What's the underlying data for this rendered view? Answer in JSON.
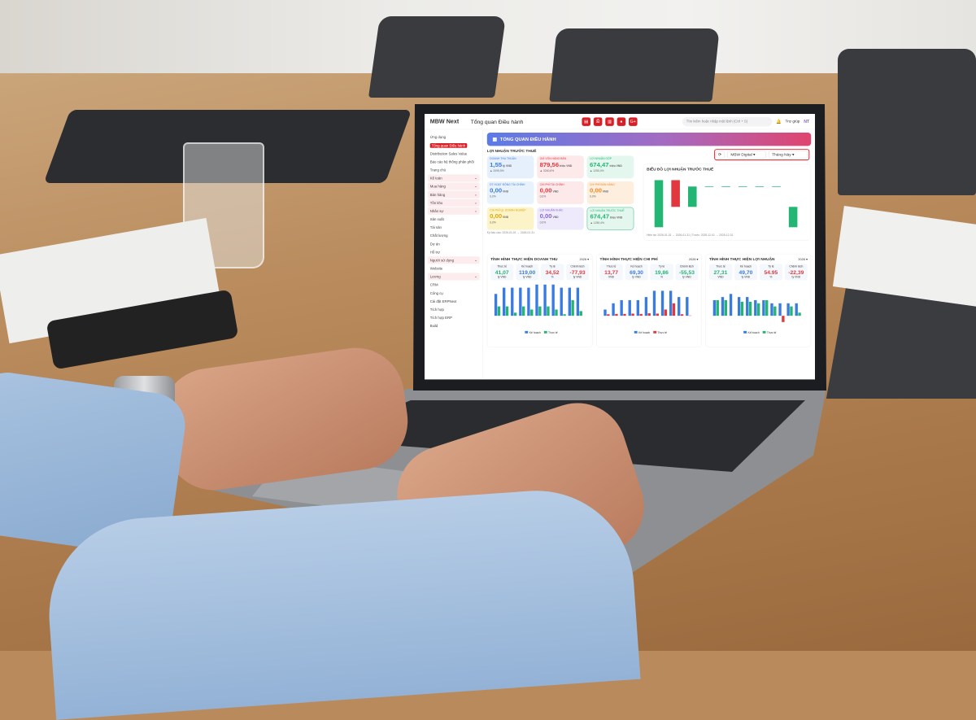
{
  "app": {
    "logo": "MBW Next",
    "title": "Tổng quan Điều hành",
    "search_placeholder": "Tìm kiếm hoặc nhập một lệnh (Ctrl + S)",
    "help": "Trợ giúp",
    "avatar": "NT",
    "toolbar_icons": [
      "report-icon",
      "print-icon",
      "chart-icon",
      "user-icon",
      "google-plus-icon"
    ]
  },
  "colors": {
    "brand": "#d81f26",
    "blue": "#3a7be0",
    "green": "#22b573",
    "red": "#e0383e"
  },
  "sidebar": {
    "items": [
      {
        "label": "Ứng dụng"
      },
      {
        "label": "Tổng quan Điều hành",
        "active": true
      },
      {
        "label": "Distribution Sales Value"
      },
      {
        "label": "Báo cáo hệ thống phân phối"
      },
      {
        "label": "Trang chủ"
      },
      {
        "label": "Kế toán",
        "group": true
      },
      {
        "label": "Mua hàng",
        "group": true
      },
      {
        "label": "Bán hàng",
        "group": true
      },
      {
        "label": "Tồn kho",
        "group": true
      },
      {
        "label": "Nhân sự",
        "group": true
      },
      {
        "label": "Sản xuất"
      },
      {
        "label": "Tài sản"
      },
      {
        "label": "Chất lượng"
      },
      {
        "label": "Dự án"
      },
      {
        "label": "Hỗ trợ"
      },
      {
        "label": "Người sử dụng",
        "group": true
      },
      {
        "label": "Website"
      },
      {
        "label": "Lương",
        "group": true
      },
      {
        "label": "CRM"
      },
      {
        "label": "Công cụ"
      },
      {
        "label": "Cài đặt ERPNext"
      },
      {
        "label": "Tích hợp"
      },
      {
        "label": "Tích hợp ERP"
      },
      {
        "label": "Build"
      }
    ]
  },
  "banner": {
    "title": "TỔNG QUAN ĐIỀU HÀNH",
    "company": "MBW Digital",
    "period": "Tháng Này"
  },
  "profit": {
    "title": "LỢI NHUẬN TRƯỚC THUẾ",
    "period": "Tháng này",
    "footnote": "Kỳ báo cáo: 2026-01-01 → 2026-01-31",
    "cards": [
      {
        "label": "DOANH THU THUẦN",
        "value": "1,55",
        "unit": "tỷ VND",
        "delta": "▲ 2095,5%",
        "color": "#3a7be0",
        "bg": "#e6f0fd"
      },
      {
        "label": "GIÁ VỐN HÀNG BÁN",
        "value": "879,56",
        "unit": "triệu VND",
        "delta": "▲ 3240,6%",
        "color": "#e0383e",
        "bg": "#fde8ea"
      },
      {
        "label": "LỢI NHUẬN GỘP",
        "value": "674,47",
        "unit": "triệu VND",
        "delta": "▲ 1250,4%",
        "color": "#22b573",
        "bg": "#e4f7ee"
      },
      {
        "label": "DT HOẠT ĐỘNG TÀI CHÍNH",
        "value": "0,00",
        "unit": "VND",
        "delta": "0,0%",
        "color": "#3a7be0",
        "bg": "#e8f2fc"
      },
      {
        "label": "CHI PHÍ TÀI CHÍNH",
        "value": "0,00",
        "unit": "VND",
        "delta": "0,0%",
        "color": "#e0383e",
        "bg": "#fde8ea"
      },
      {
        "label": "CHI PHÍ BÁN HÀNG",
        "value": "0,00",
        "unit": "VND",
        "delta": "0,0%",
        "color": "#f08a24",
        "bg": "#fdeedd"
      },
      {
        "label": "CHI PHÍ QL DOANH NGHIỆP",
        "value": "0,00",
        "unit": "VND",
        "delta": "0,0%",
        "color": "#e0a800",
        "bg": "#fdf3c8"
      },
      {
        "label": "LỢI NHUẬN KHÁC",
        "value": "0,00",
        "unit": "VND",
        "delta": "0,0%",
        "color": "#8a63d2",
        "bg": "#efeafb"
      },
      {
        "label": "LỢI NHUẬN TRƯỚC THUẾ",
        "value": "674,47",
        "unit": "triệu VND",
        "delta": "▲ 1250,4%",
        "color": "#22b573",
        "bg": "#e4f7ee"
      }
    ]
  },
  "waterfall": {
    "title": "BIỂU ĐỒ LỢI NHUẬN TRƯỚC THUẾ",
    "period": "Tháng này",
    "footnote": "Hiện tại: 2026-01-01 → 2026-01-31 | Trước: 2025-12-01 → 2025-12-31",
    "values": [
      1.55,
      -0.88,
      0.67,
      0,
      0,
      0,
      0,
      0,
      0.67
    ],
    "colors": [
      "#22b573",
      "#e0383e",
      "#22b573",
      "#22b573",
      "#22b573",
      "#22b573",
      "#22b573",
      "#22b573",
      "#22b573"
    ]
  },
  "panels": [
    {
      "title": "TÌNH HÌNH THỰC HIỆN DOANH THU",
      "year": "2026",
      "kpis": [
        {
          "label": "Thực tế",
          "value": "41,07",
          "unit": "tỷ VND",
          "color": "#22b573"
        },
        {
          "label": "Kế hoạch",
          "value": "119,00",
          "unit": "tỷ VND",
          "color": "#3a7be0"
        },
        {
          "label": "Tỷ lệ",
          "value": "34,52",
          "unit": "%",
          "color": "#e0383e"
        },
        {
          "label": "Chênh lệch",
          "value": "-77,93",
          "unit": "tỷ VND",
          "color": "#e0383e"
        }
      ],
      "legend": [
        "Kế hoạch",
        "Thực tế"
      ],
      "colors": [
        "#3a7be0",
        "#22b573"
      ],
      "plan": [
        7,
        9,
        9,
        9,
        9,
        10,
        10,
        10,
        9,
        9,
        9
      ],
      "actual": [
        3,
        3,
        1,
        3,
        2,
        3,
        3,
        2,
        0.5,
        5,
        1.5
      ]
    },
    {
      "title": "TÌNH HÌNH THỰC HIỆN CHI PHÍ",
      "year": "2026",
      "kpis": [
        {
          "label": "Thực tế",
          "value": "13,77",
          "unit": "VND",
          "color": "#e0383e"
        },
        {
          "label": "Kế hoạch",
          "value": "69,30",
          "unit": "tỷ VND",
          "color": "#3a7be0"
        },
        {
          "label": "Tỷ lệ",
          "value": "19,86",
          "unit": "%",
          "color": "#22b573"
        },
        {
          "label": "Chênh lệch",
          "value": "-55,53",
          "unit": "tỷ VND",
          "color": "#22b573"
        }
      ],
      "legend": [
        "Kế hoạch",
        "Thực tế"
      ],
      "colors": [
        "#3a7be0",
        "#e0383e"
      ],
      "plan": [
        2,
        4,
        5,
        5,
        5,
        6,
        8,
        8,
        8,
        6,
        6
      ],
      "actual": [
        0.5,
        0.6,
        0.6,
        0.7,
        0.6,
        0.8,
        0.7,
        2,
        4,
        0.5,
        0.1
      ]
    },
    {
      "title": "TÌNH HÌNH THỰC HIỆN LỢI NHUẬN",
      "year": "2026",
      "kpis": [
        {
          "label": "Thực tế",
          "value": "27,31",
          "unit": "VND",
          "color": "#22b573"
        },
        {
          "label": "Kế hoạch",
          "value": "49,70",
          "unit": "tỷ VND",
          "color": "#3a7be0"
        },
        {
          "label": "Tỷ lệ",
          "value": "54.95",
          "unit": "%",
          "color": "#e0383e"
        },
        {
          "label": "Chênh lệch",
          "value": "-22,39",
          "unit": "tỷ VND",
          "color": "#e0383e"
        }
      ],
      "legend": [
        "Kế hoạch",
        "Thực tế"
      ],
      "colors": [
        "#3a7be0",
        "#22b573"
      ],
      "plan": [
        5,
        6,
        7,
        6,
        6,
        5,
        5,
        4,
        4,
        4,
        4
      ],
      "actual": [
        5,
        5,
        0,
        4.5,
        4.5,
        4,
        5,
        3,
        -2,
        3,
        1
      ]
    }
  ]
}
